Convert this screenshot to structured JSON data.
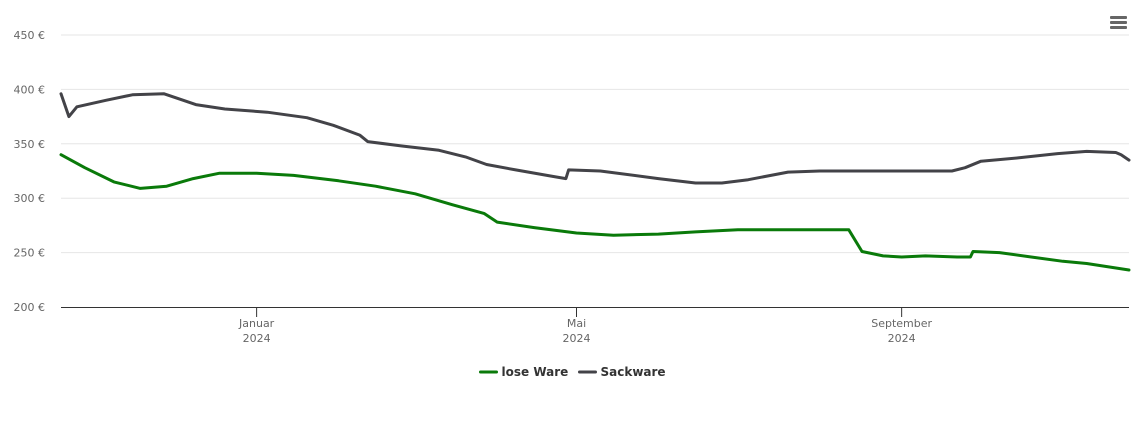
{
  "chart_data": {
    "type": "line",
    "title": "",
    "xlabel": "",
    "ylabel": "",
    "ylim": [
      200,
      450
    ],
    "y_ticks": [
      "200 €",
      "250 €",
      "300 €",
      "350 €",
      "400 €",
      "450 €"
    ],
    "x_range": [
      "2023-10-19",
      "2024-11-26"
    ],
    "x_ticks": [
      {
        "date": "2024-01-01",
        "month": "Januar",
        "year": "2024"
      },
      {
        "date": "2024-05-01",
        "month": "Mai",
        "year": "2024"
      },
      {
        "date": "2024-09-01",
        "month": "September",
        "year": "2024"
      }
    ],
    "grid": true,
    "legend_position": "bottom",
    "series": [
      {
        "name": "lose Ware",
        "color": "#0a7a0a",
        "points": [
          [
            "2023-10-19",
            340
          ],
          [
            "2023-10-28",
            328
          ],
          [
            "2023-11-08",
            315
          ],
          [
            "2023-11-18",
            309
          ],
          [
            "2023-11-28",
            311
          ],
          [
            "2023-12-08",
            318
          ],
          [
            "2023-12-18",
            323
          ],
          [
            "2024-01-01",
            323
          ],
          [
            "2024-01-15",
            321
          ],
          [
            "2024-02-01",
            316
          ],
          [
            "2024-02-15",
            311
          ],
          [
            "2024-03-01",
            304
          ],
          [
            "2024-03-15",
            294
          ],
          [
            "2024-03-27",
            286
          ],
          [
            "2024-04-01",
            278
          ],
          [
            "2024-04-15",
            273
          ],
          [
            "2024-05-01",
            268
          ],
          [
            "2024-05-15",
            266
          ],
          [
            "2024-06-01",
            267
          ],
          [
            "2024-06-15",
            269
          ],
          [
            "2024-07-01",
            271
          ],
          [
            "2024-08-01",
            271
          ],
          [
            "2024-08-12",
            271
          ],
          [
            "2024-08-17",
            251
          ],
          [
            "2024-08-25",
            247
          ],
          [
            "2024-09-01",
            246
          ],
          [
            "2024-09-10",
            247
          ],
          [
            "2024-09-22",
            246
          ],
          [
            "2024-09-27",
            246
          ],
          [
            "2024-09-28",
            251
          ],
          [
            "2024-10-08",
            250
          ],
          [
            "2024-10-20",
            246
          ],
          [
            "2024-11-01",
            242
          ],
          [
            "2024-11-10",
            240
          ],
          [
            "2024-11-26",
            234
          ]
        ]
      },
      {
        "name": "Sackware",
        "color": "#434348",
        "points": [
          [
            "2023-10-19",
            396
          ],
          [
            "2023-10-22",
            375
          ],
          [
            "2023-10-25",
            384
          ],
          [
            "2023-11-05",
            390
          ],
          [
            "2023-11-15",
            395
          ],
          [
            "2023-11-27",
            396
          ],
          [
            "2023-12-03",
            391
          ],
          [
            "2023-12-09",
            386
          ],
          [
            "2023-12-20",
            382
          ],
          [
            "2024-01-05",
            379
          ],
          [
            "2024-01-20",
            374
          ],
          [
            "2024-01-30",
            367
          ],
          [
            "2024-02-09",
            358
          ],
          [
            "2024-02-12",
            352
          ],
          [
            "2024-02-25",
            348
          ],
          [
            "2024-03-10",
            344
          ],
          [
            "2024-03-20",
            338
          ],
          [
            "2024-03-28",
            331
          ],
          [
            "2024-04-08",
            326
          ],
          [
            "2024-04-22",
            320
          ],
          [
            "2024-04-27",
            318
          ],
          [
            "2024-04-28",
            326
          ],
          [
            "2024-05-10",
            325
          ],
          [
            "2024-06-01",
            318
          ],
          [
            "2024-06-15",
            314
          ],
          [
            "2024-06-25",
            314
          ],
          [
            "2024-07-05",
            317
          ],
          [
            "2024-07-20",
            324
          ],
          [
            "2024-08-01",
            325
          ],
          [
            "2024-09-10",
            325
          ],
          [
            "2024-09-20",
            325
          ],
          [
            "2024-09-25",
            328
          ],
          [
            "2024-10-01",
            334
          ],
          [
            "2024-10-15",
            337
          ],
          [
            "2024-10-30",
            341
          ],
          [
            "2024-11-10",
            343
          ],
          [
            "2024-11-21",
            342
          ],
          [
            "2024-11-23",
            340
          ],
          [
            "2024-11-26",
            335
          ]
        ]
      }
    ]
  }
}
